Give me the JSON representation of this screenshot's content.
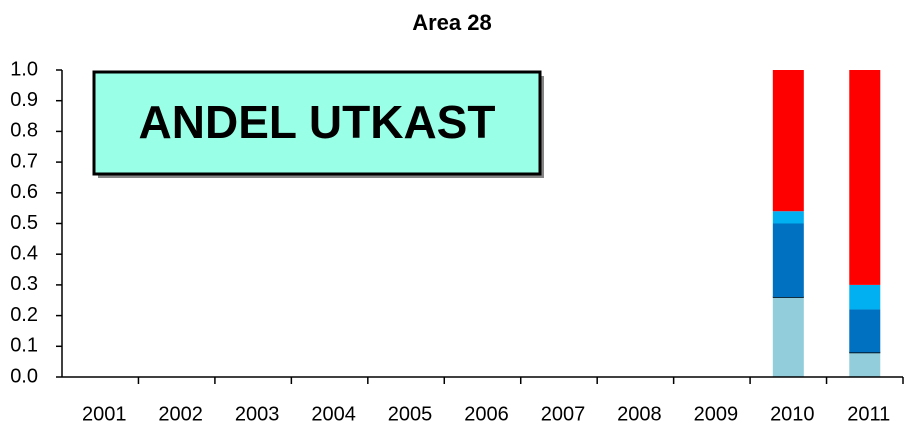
{
  "chart_data": {
    "type": "stacked_bar",
    "title": "Area 28",
    "annotation": "ANDEL UTKAST",
    "categories": [
      "2001",
      "2002",
      "2003",
      "2004",
      "2005",
      "2006",
      "2007",
      "2008",
      "2009",
      "2010",
      "2011"
    ],
    "series": [
      {
        "color": "#92cddc",
        "values": [
          null,
          null,
          null,
          null,
          null,
          null,
          null,
          null,
          null,
          0.26,
          0.08
        ]
      },
      {
        "color": "#0070c0",
        "values": [
          null,
          null,
          null,
          null,
          null,
          null,
          null,
          null,
          null,
          0.24,
          0.14
        ]
      },
      {
        "color": "#00b0f0",
        "values": [
          null,
          null,
          null,
          null,
          null,
          null,
          null,
          null,
          null,
          0.04,
          0.08
        ]
      },
      {
        "color": "#ff0000",
        "values": [
          null,
          null,
          null,
          null,
          null,
          null,
          null,
          null,
          null,
          0.46,
          0.7
        ]
      }
    ],
    "ylim": [
      0,
      1
    ],
    "yticks": [
      {
        "value": 0,
        "label": "0.0"
      },
      0.1,
      0.2,
      0.3,
      0.4,
      0.5,
      0.6,
      0.7,
      0.8,
      0.9,
      {
        "value": 1,
        "label": "1.0"
      }
    ]
  }
}
